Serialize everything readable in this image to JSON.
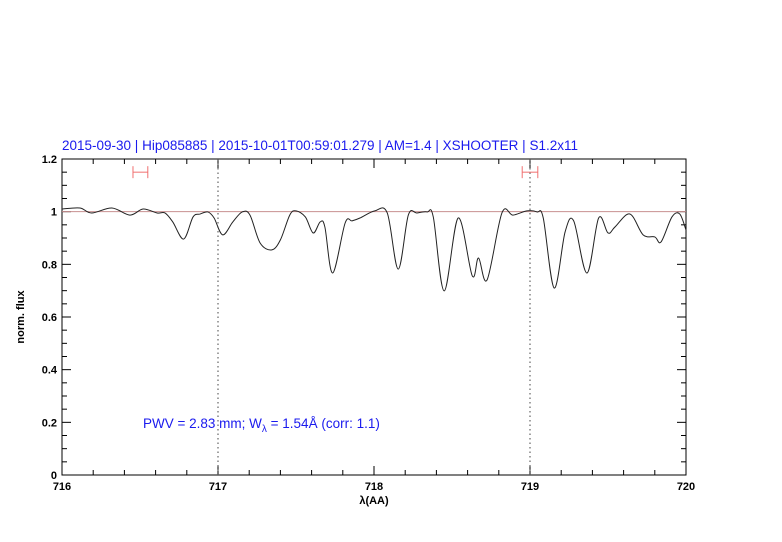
{
  "chart_data": {
    "type": "line",
    "title": "2015-09-30 | Hip085885 | 2015-10-01T00:59:01.279 | AM=1.4 | XSHOOTER | S1.2x11",
    "xlabel": "λ(AA)",
    "ylabel": "norm. flux",
    "xlim": [
      716,
      720
    ],
    "ylim": [
      0,
      1.2
    ],
    "x_ticks": [
      716,
      717,
      718,
      719,
      720
    ],
    "x_tick_labels": [
      "716",
      "717",
      "718",
      "719",
      "720"
    ],
    "y_ticks": [
      0,
      0.2,
      0.4,
      0.6,
      0.8,
      1,
      1.2
    ],
    "y_tick_labels": [
      "0",
      "0.2",
      "0.4",
      "0.6",
      "0.8",
      "1",
      "1.2"
    ],
    "grid": false,
    "continuum_level": 1.0,
    "vertical_markers": [
      717,
      719
    ],
    "error_bars": [
      {
        "x": [
          716.455,
          716.55
        ],
        "y": 1.15
      },
      {
        "x": [
          718.95,
          719.05
        ],
        "y": 1.15
      }
    ],
    "annotation": {
      "prefix": "PWV = 2.83 mm; W",
      "subscript": "λ",
      "suffix": " = 1.54Å (corr: 1.1)"
    },
    "colors": {
      "spectrum": "#222222",
      "continuum": "#c89090",
      "error_bars": "#f07070",
      "text": "#1a1aee"
    },
    "series": [
      {
        "x": [
          716.0,
          716.115,
          716.19,
          716.32,
          716.435,
          716.52,
          716.61,
          716.66,
          716.71,
          716.78,
          716.84,
          716.885,
          716.935,
          716.975,
          717.03,
          717.095,
          717.155,
          717.205,
          717.27,
          717.345,
          717.4,
          717.46,
          717.5,
          717.56,
          717.61,
          717.655,
          717.685,
          717.735,
          717.815,
          717.86,
          717.91,
          718.005,
          718.085,
          718.155,
          718.22,
          718.275,
          718.34,
          718.38,
          718.45,
          718.54,
          718.63,
          718.67,
          718.725,
          718.82,
          718.89,
          718.98,
          719.045,
          719.085,
          719.155,
          719.225,
          719.28,
          719.365,
          719.44,
          719.5,
          719.545,
          719.64,
          719.725,
          719.8,
          719.84,
          719.91,
          719.96,
          720.0
        ],
        "y": [
          1.01,
          1.014,
          0.995,
          1.014,
          0.987,
          1.01,
          0.995,
          0.995,
          0.961,
          0.896,
          0.98,
          0.991,
          0.999,
          0.976,
          0.912,
          0.961,
          0.999,
          0.987,
          0.881,
          0.855,
          0.893,
          0.987,
          1.003,
          0.98,
          0.919,
          0.961,
          0.942,
          0.767,
          0.957,
          0.965,
          0.976,
          1.003,
          0.995,
          0.782,
          0.987,
          0.995,
          0.999,
          0.98,
          0.699,
          0.976,
          0.756,
          0.824,
          0.741,
          0.995,
          0.987,
          1.003,
          0.999,
          0.976,
          0.71,
          0.923,
          0.965,
          0.767,
          0.976,
          0.919,
          0.942,
          0.991,
          0.912,
          0.904,
          0.885,
          0.98,
          0.991,
          0.93
        ]
      }
    ]
  }
}
